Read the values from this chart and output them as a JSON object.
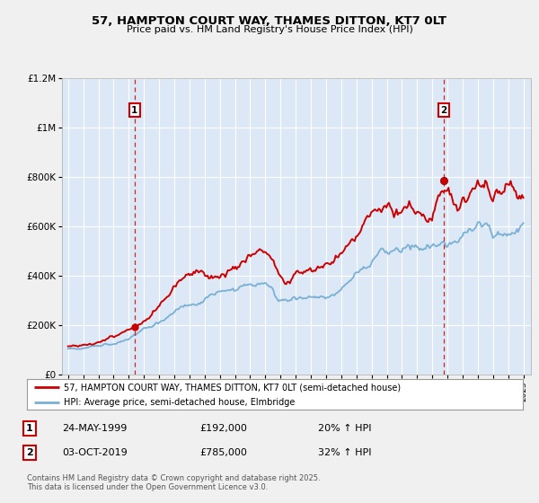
{
  "title_line1": "57, HAMPTON COURT WAY, THAMES DITTON, KT7 0LT",
  "title_line2": "Price paid vs. HM Land Registry's House Price Index (HPI)",
  "legend_line1": "57, HAMPTON COURT WAY, THAMES DITTON, KT7 0LT (semi-detached house)",
  "legend_line2": "HPI: Average price, semi-detached house, Elmbridge",
  "annotation1_date": "24-MAY-1999",
  "annotation1_price": "£192,000",
  "annotation1_hpi": "20% ↑ HPI",
  "annotation2_date": "03-OCT-2019",
  "annotation2_price": "£785,000",
  "annotation2_hpi": "32% ↑ HPI",
  "footer": "Contains HM Land Registry data © Crown copyright and database right 2025.\nThis data is licensed under the Open Government Licence v3.0.",
  "sale1_year": 1999.38,
  "sale1_value": 192000,
  "sale2_year": 2019.75,
  "sale2_value": 785000,
  "price_color": "#cc0000",
  "hpi_color": "#7ab0d4",
  "dashed_line_color": "#cc0000",
  "background_color": "#f0f0f0",
  "plot_bg_color": "#dce8f5",
  "ylim_max": 1200000,
  "ylim_min": 0,
  "xlim_min": 1994.6,
  "xlim_max": 2025.5
}
